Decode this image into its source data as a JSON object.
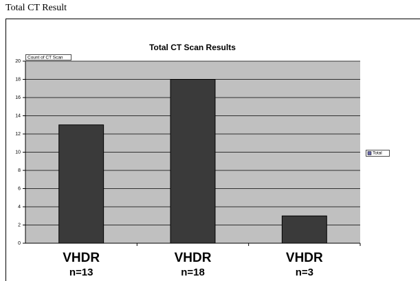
{
  "page_title": "Total CT Result",
  "chart_data": {
    "type": "bar",
    "title": "Total CT Scan Results",
    "y_label": "Count of CT Scan",
    "categories": [
      [
        "VHDR",
        "n=13"
      ],
      [
        "VHDR",
        "n=18"
      ],
      [
        "VHDR",
        "n=3"
      ]
    ],
    "series": [
      {
        "name": "Total",
        "color": "#3a3a3a",
        "values": [
          13,
          18,
          3
        ]
      }
    ],
    "ylim": [
      0,
      20
    ],
    "yticks": [
      0,
      2,
      4,
      6,
      8,
      10,
      12,
      14,
      16,
      18,
      20
    ],
    "grid": true,
    "legend": "right"
  }
}
